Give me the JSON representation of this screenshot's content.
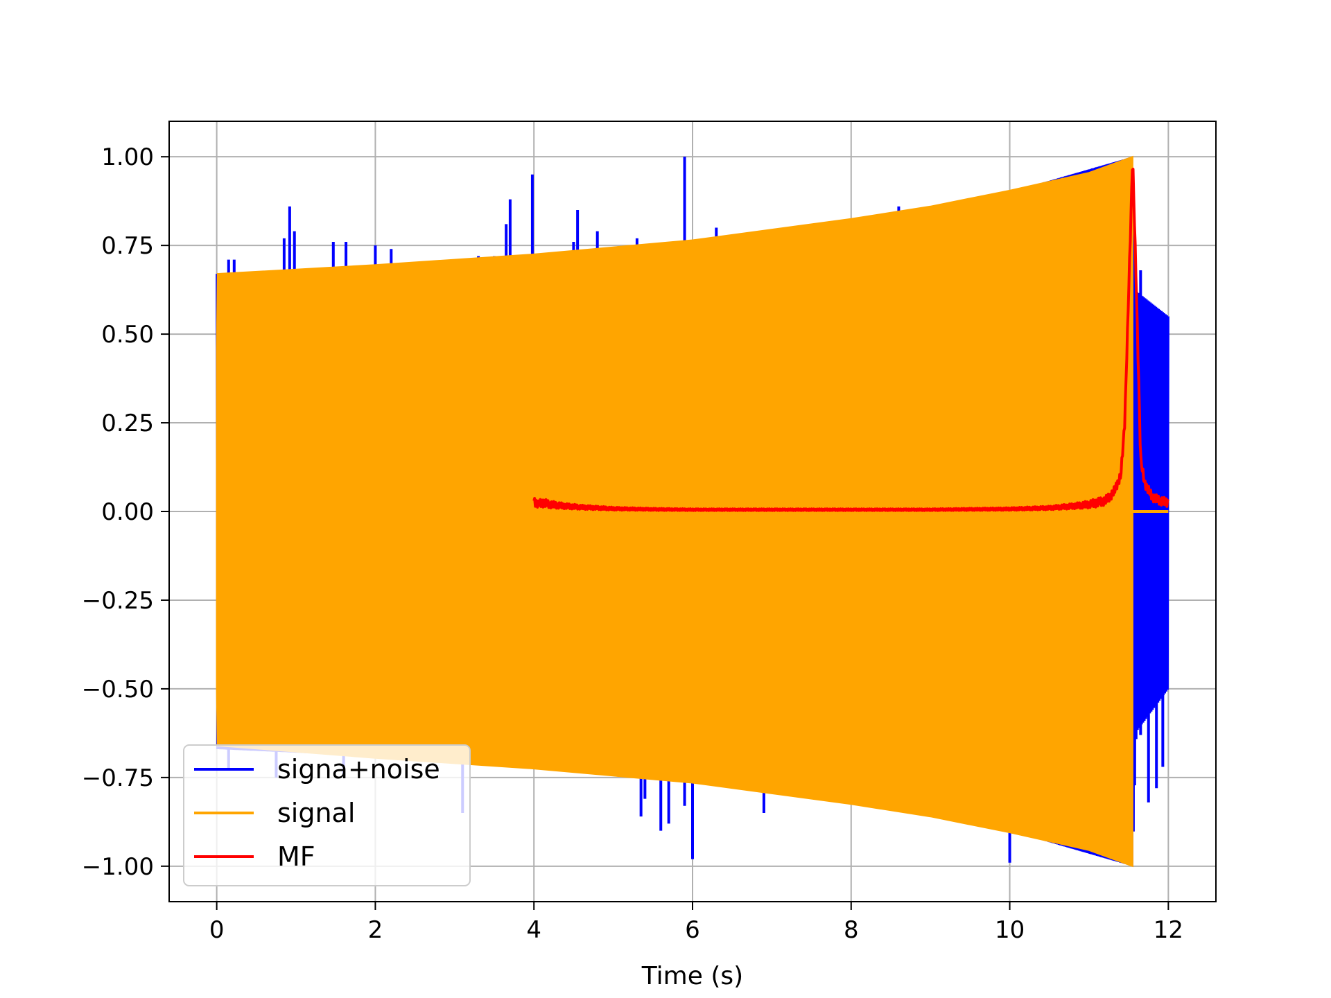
{
  "chart_data": {
    "type": "line",
    "title": "",
    "xlabel": "Time (s)",
    "ylabel": "",
    "xlim": [
      -0.6,
      12.6
    ],
    "ylim": [
      -1.1,
      1.1
    ],
    "xticks": [
      0,
      2,
      4,
      6,
      8,
      10,
      12
    ],
    "xtick_labels": [
      "0",
      "2",
      "4",
      "6",
      "8",
      "10",
      "12"
    ],
    "yticks": [
      1.0,
      0.75,
      0.5,
      0.25,
      0.0,
      -0.25,
      -0.5,
      -0.75,
      -1.0
    ],
    "ytick_labels": [
      "1.00",
      "0.75",
      "0.50",
      "0.25",
      "0.00",
      "−0.25",
      "−0.50",
      "−0.75",
      "−1.00"
    ],
    "grid": true,
    "legend": {
      "placement": "lower-left",
      "entries": [
        {
          "label": "signa+noise",
          "color": "#0000ff"
        },
        {
          "label": "signal",
          "color": "#ffa500"
        },
        {
          "label": "MF",
          "color": "#ff0000"
        }
      ]
    },
    "series": [
      {
        "name": "signa+noise",
        "color": "#0000ff",
        "kind": "oscillation-with-spikes",
        "t_start": 0.0,
        "t_end": 12.0,
        "envelope_upper": [
          [
            0.0,
            0.67
          ],
          [
            2.0,
            0.69
          ],
          [
            4.0,
            0.72
          ],
          [
            6.0,
            0.76
          ],
          [
            8.0,
            0.82
          ],
          [
            10.0,
            0.9
          ],
          [
            11.55,
            1.0
          ],
          [
            11.6,
            0.62
          ],
          [
            12.0,
            0.55
          ]
        ],
        "envelope_lower": [
          [
            0.0,
            -0.67
          ],
          [
            2.0,
            -0.69
          ],
          [
            4.0,
            -0.72
          ],
          [
            6.0,
            -0.76
          ],
          [
            8.0,
            -0.82
          ],
          [
            10.0,
            -0.9
          ],
          [
            11.55,
            -1.0
          ],
          [
            11.6,
            -0.62
          ],
          [
            12.0,
            -0.5
          ]
        ],
        "spikes": [
          [
            0.15,
            0.71
          ],
          [
            0.22,
            0.71
          ],
          [
            0.85,
            0.77
          ],
          [
            0.92,
            0.86
          ],
          [
            0.98,
            0.79
          ],
          [
            1.47,
            0.76
          ],
          [
            1.63,
            0.76
          ],
          [
            2.0,
            0.75
          ],
          [
            2.2,
            0.74
          ],
          [
            3.3,
            0.72
          ],
          [
            3.5,
            0.72
          ],
          [
            3.65,
            0.81
          ],
          [
            3.7,
            0.88
          ],
          [
            3.98,
            0.95
          ],
          [
            4.5,
            0.76
          ],
          [
            4.55,
            0.85
          ],
          [
            4.8,
            0.79
          ],
          [
            5.3,
            0.77
          ],
          [
            5.9,
            1.0
          ],
          [
            6.3,
            0.8
          ],
          [
            8.6,
            0.86
          ],
          [
            0.15,
            -0.73
          ],
          [
            0.75,
            -0.75
          ],
          [
            1.6,
            -0.74
          ],
          [
            3.1,
            -0.85
          ],
          [
            5.35,
            -0.86
          ],
          [
            5.4,
            -0.81
          ],
          [
            5.6,
            -0.9
          ],
          [
            5.7,
            -0.88
          ],
          [
            5.9,
            -0.83
          ],
          [
            6.0,
            -0.98
          ],
          [
            6.9,
            -0.85
          ],
          [
            10.0,
            -0.99
          ],
          [
            11.65,
            0.68
          ],
          [
            11.72,
            0.58
          ],
          [
            11.82,
            0.56
          ],
          [
            11.9,
            0.54
          ],
          [
            11.97,
            0.53
          ],
          [
            11.65,
            -0.63
          ],
          [
            11.75,
            -0.82
          ],
          [
            11.85,
            -0.78
          ],
          [
            11.93,
            -0.72
          ],
          [
            11.98,
            -0.5
          ]
        ]
      },
      {
        "name": "signal",
        "color": "#ffa500",
        "kind": "chirp-band",
        "t_start": 0.0,
        "t_end": 11.55,
        "upper": [
          [
            0.0,
            0.46
          ],
          [
            0.01,
            0.67
          ],
          [
            2.0,
            0.695
          ],
          [
            4.0,
            0.725
          ],
          [
            6.0,
            0.765
          ],
          [
            8.0,
            0.825
          ],
          [
            9.0,
            0.86
          ],
          [
            10.0,
            0.905
          ],
          [
            11.0,
            0.955
          ],
          [
            11.55,
            1.0
          ]
        ],
        "lower": [
          [
            0.0,
            -0.5
          ],
          [
            0.01,
            -0.66
          ],
          [
            2.0,
            -0.695
          ],
          [
            4.0,
            -0.725
          ],
          [
            6.0,
            -0.765
          ],
          [
            8.0,
            -0.825
          ],
          [
            9.0,
            -0.86
          ],
          [
            10.0,
            -0.905
          ],
          [
            11.0,
            -0.955
          ],
          [
            11.55,
            -1.0
          ]
        ],
        "after": [
          [
            11.55,
            0.0
          ],
          [
            12.0,
            0.0
          ]
        ]
      },
      {
        "name": "MF",
        "color": "#ff0000",
        "kind": "matched-filter",
        "x": [
          4.0,
          4.05,
          4.1,
          4.2,
          4.4,
          4.6,
          5.0,
          5.5,
          6.0,
          6.5,
          7.0,
          7.5,
          8.0,
          8.5,
          9.0,
          9.5,
          10.0,
          10.5,
          10.8,
          11.0,
          11.2,
          11.3,
          11.4,
          11.45,
          11.5,
          11.55,
          11.6,
          11.65,
          11.7,
          11.8,
          11.9,
          12.0
        ],
        "y": [
          0.03,
          0.02,
          0.025,
          0.02,
          0.015,
          0.012,
          0.008,
          0.006,
          0.005,
          0.005,
          0.005,
          0.005,
          0.005,
          0.005,
          0.005,
          0.006,
          0.007,
          0.01,
          0.015,
          0.02,
          0.03,
          0.05,
          0.1,
          0.25,
          0.62,
          1.0,
          0.6,
          0.15,
          0.08,
          0.04,
          0.03,
          0.025
        ]
      }
    ]
  }
}
